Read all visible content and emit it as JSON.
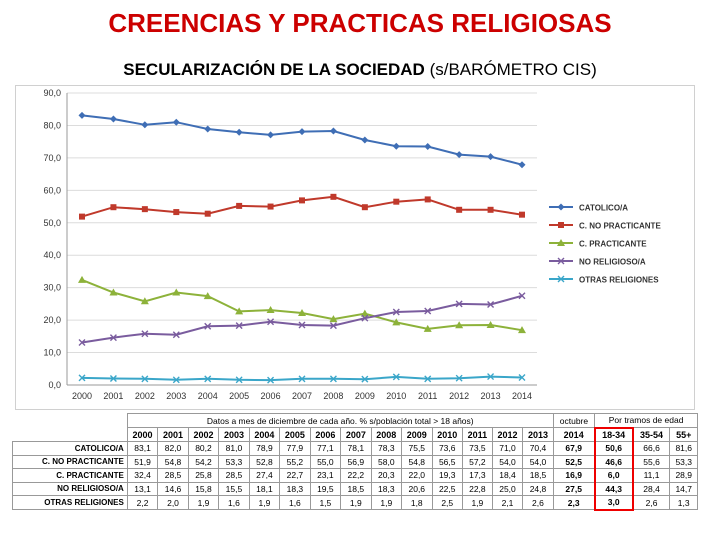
{
  "title": "CREENCIAS Y PRACTICAS RELIGIOSAS",
  "subtitle_bold": "SECULARIZACIÓN DE LA SOCIEDAD",
  "subtitle_rest": " (s/BARÓMETRO  CIS)",
  "chart_data": {
    "type": "line",
    "x": [
      "2000",
      "2001",
      "2002",
      "2003",
      "2004",
      "2005",
      "2006",
      "2007",
      "2008",
      "2009",
      "2010",
      "2011",
      "2012",
      "2013",
      "2014"
    ],
    "ylim": [
      0,
      90
    ],
    "yticks": [
      "0,0",
      "10,0",
      "20,0",
      "30,0",
      "40,0",
      "50,0",
      "60,0",
      "70,0",
      "80,0",
      "90,0"
    ],
    "grid": true,
    "legend_position": "right",
    "series": [
      {
        "name": "CATOLICO/A",
        "color": "#3f6eb5",
        "marker": "diamond",
        "values": [
          83.1,
          82.0,
          80.2,
          81.0,
          78.9,
          77.9,
          77.1,
          78.1,
          78.3,
          75.5,
          73.6,
          73.5,
          71.0,
          70.4,
          67.9
        ]
      },
      {
        "name": "C. NO PRACTICANTE",
        "color": "#c0392b",
        "marker": "square",
        "values": [
          51.9,
          54.8,
          54.2,
          53.3,
          52.8,
          55.2,
          55.0,
          56.9,
          58.0,
          54.8,
          56.5,
          57.2,
          54.0,
          54.0,
          52.5
        ]
      },
      {
        "name": "C. PRACTICANTE",
        "color": "#8db23a",
        "marker": "triangle",
        "values": [
          32.4,
          28.5,
          25.8,
          28.5,
          27.4,
          22.7,
          23.1,
          22.2,
          20.3,
          22.0,
          19.3,
          17.3,
          18.4,
          18.5,
          16.9
        ]
      },
      {
        "name": "NO RELIGIOSO/A",
        "color": "#7a5c9e",
        "marker": "x",
        "values": [
          13.1,
          14.6,
          15.8,
          15.5,
          18.1,
          18.3,
          19.5,
          18.5,
          18.3,
          20.6,
          22.5,
          22.8,
          25.0,
          24.8,
          27.5
        ]
      },
      {
        "name": "OTRAS RELIGIONES",
        "color": "#3aa6c9",
        "marker": "x",
        "values": [
          2.2,
          2.0,
          1.9,
          1.6,
          1.9,
          1.6,
          1.5,
          1.9,
          1.9,
          1.8,
          2.5,
          1.9,
          2.1,
          2.6,
          2.3
        ]
      }
    ]
  },
  "table": {
    "note": "Datos a mes de diciembre de cada año. % s/población total > 18 años)",
    "month_label": "octubre",
    "age_group_label": "Por tramos de edad",
    "years": [
      "2000",
      "2001",
      "2002",
      "2003",
      "2004",
      "2005",
      "2006",
      "2007",
      "2008",
      "2009",
      "2010",
      "2011",
      "2012",
      "2013",
      "2014"
    ],
    "age_groups": [
      "18-34",
      "35-54",
      "55+"
    ],
    "rows": [
      {
        "label": "CATOLICO/A",
        "values": [
          "83,1",
          "82,0",
          "80,2",
          "81,0",
          "78,9",
          "77,9",
          "77,1",
          "78,1",
          "78,3",
          "75,5",
          "73,6",
          "73,5",
          "71,0",
          "70,4",
          "67,9"
        ],
        "ages": [
          "50,6",
          "66,6",
          "81,6"
        ]
      },
      {
        "label": "C. NO PRACTICANTE",
        "values": [
          "51,9",
          "54,8",
          "54,2",
          "53,3",
          "52,8",
          "55,2",
          "55,0",
          "56,9",
          "58,0",
          "54,8",
          "56,5",
          "57,2",
          "54,0",
          "54,0",
          "52,5"
        ],
        "ages": [
          "46,6",
          "55,6",
          "53,3"
        ]
      },
      {
        "label": "C. PRACTICANTE",
        "values": [
          "32,4",
          "28,5",
          "25,8",
          "28,5",
          "27,4",
          "22,7",
          "23,1",
          "22,2",
          "20,3",
          "22,0",
          "19,3",
          "17,3",
          "18,4",
          "18,5",
          "16,9"
        ],
        "ages": [
          "6,0",
          "11,1",
          "28,9"
        ]
      },
      {
        "label": "NO RELIGIOSO/A",
        "values": [
          "13,1",
          "14,6",
          "15,8",
          "15,5",
          "18,1",
          "18,3",
          "19,5",
          "18,5",
          "18,3",
          "20,6",
          "22,5",
          "22,8",
          "25,0",
          "24,8",
          "27,5"
        ],
        "ages": [
          "44,3",
          "28,4",
          "14,7"
        ]
      },
      {
        "label": "OTRAS RELIGIONES",
        "values": [
          "2,2",
          "2,0",
          "1,9",
          "1,6",
          "1,9",
          "1,6",
          "1,5",
          "1,9",
          "1,9",
          "1,8",
          "2,5",
          "1,9",
          "2,1",
          "2,6",
          "2,3"
        ],
        "ages": [
          "3,0",
          "2,6",
          "1,3"
        ]
      }
    ]
  }
}
